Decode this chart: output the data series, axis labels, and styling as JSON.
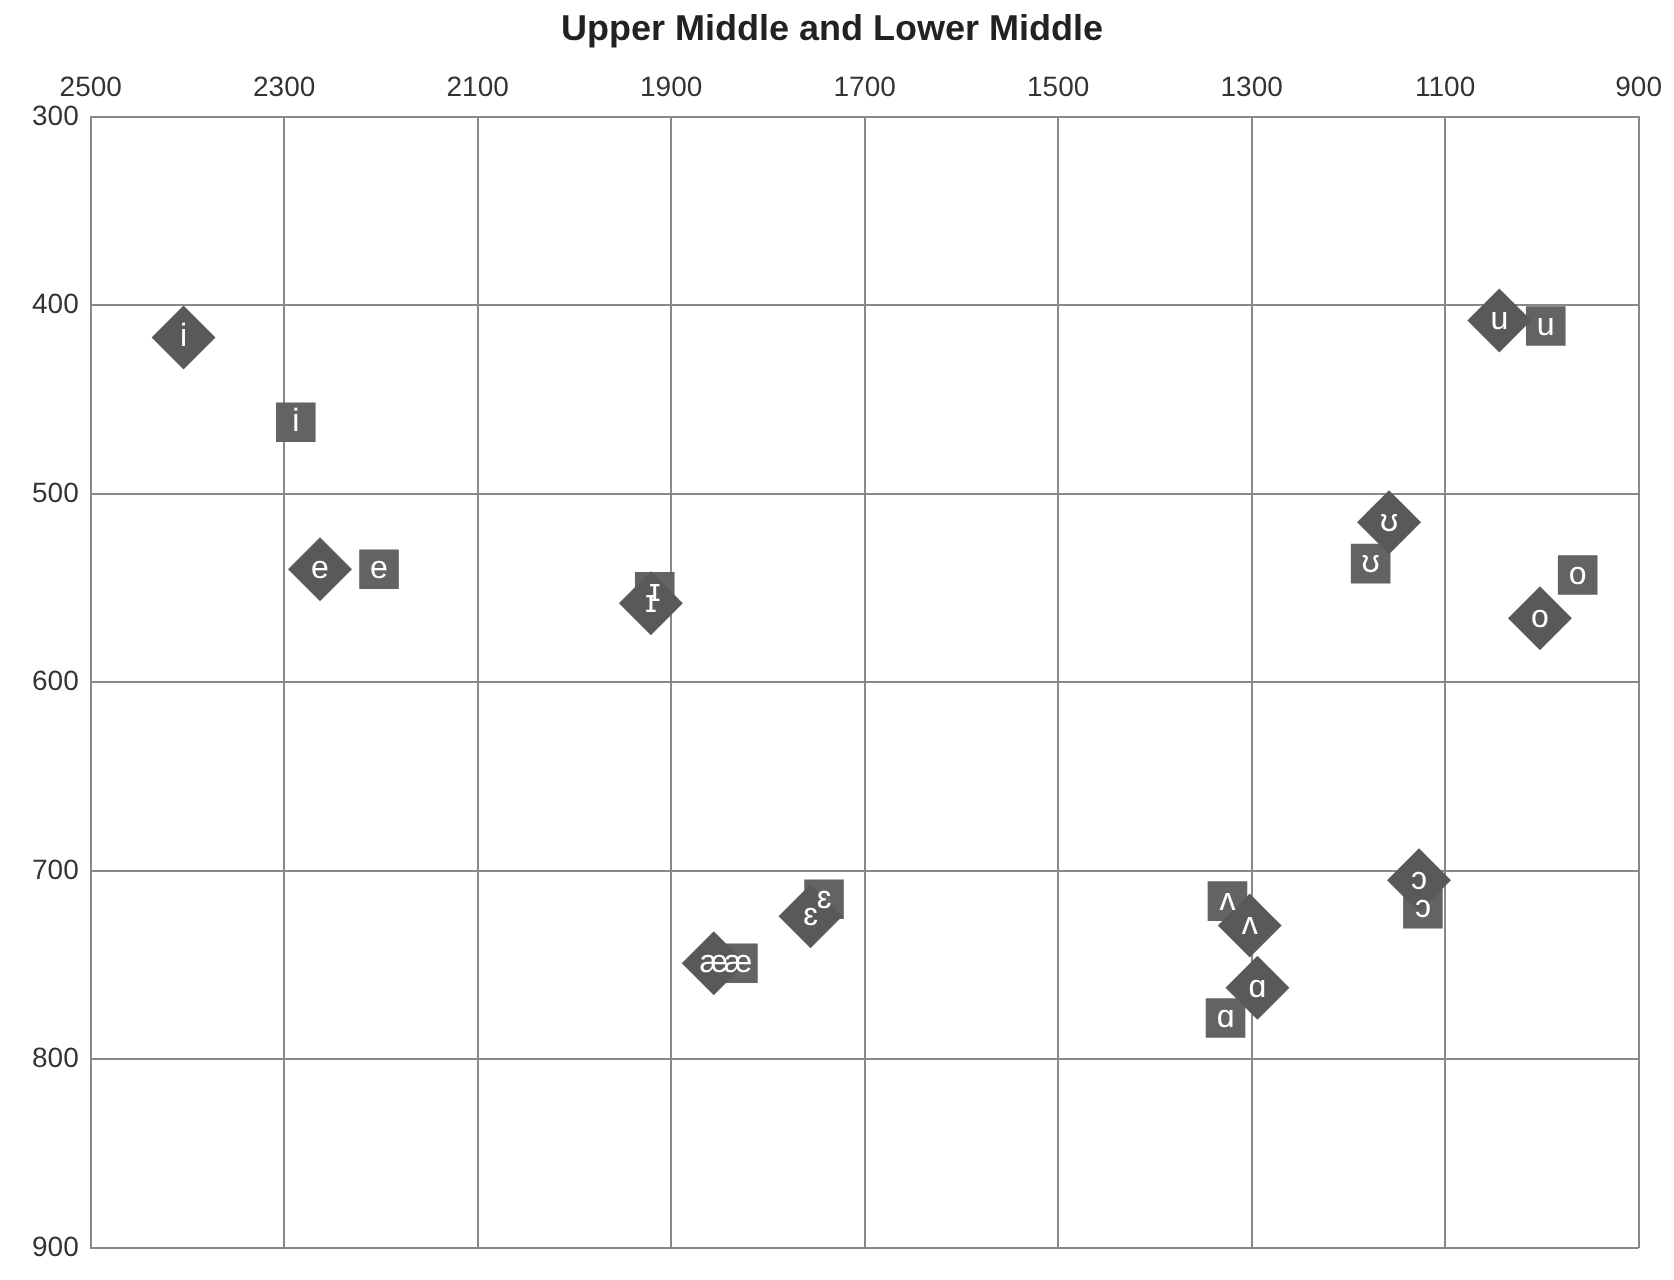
{
  "chart_data": {
    "type": "scatter",
    "title": "Upper Middle and Lower Middle",
    "xlim": [
      2500,
      900
    ],
    "xticks": [
      2500,
      2300,
      2100,
      1900,
      1700,
      1500,
      1300,
      1100,
      900
    ],
    "ylim": [
      900,
      300
    ],
    "yticks": [
      300,
      400,
      500,
      600,
      700,
      800,
      900
    ],
    "grid": true,
    "legend": false,
    "series": [
      {
        "marker": "diamond",
        "color": "#595959",
        "x": [
          2404,
          2263,
          1921,
          1856,
          1756,
          1302,
          1294,
          1127,
          1158,
          1044,
          1002
        ],
        "values": [
          417,
          540,
          558,
          749,
          724,
          729,
          762,
          705,
          515,
          408,
          566
        ],
        "value_labels": [
          "i",
          "e",
          "ɪ",
          "æ",
          "ɛ",
          "ʌ",
          "ɑ",
          "ɔ",
          "ʊ",
          "u",
          "o"
        ]
      },
      {
        "marker": "square",
        "color": "#636363",
        "x": [
          2288,
          2202,
          1917,
          1831,
          1742,
          1325,
          1327,
          1123,
          1177,
          996,
          963
        ],
        "values": [
          462,
          540,
          552,
          749,
          715,
          716,
          778,
          720,
          537,
          411,
          543
        ],
        "value_labels": [
          "i",
          "e",
          "ɪ",
          "æ",
          "ɛ",
          "ʌ",
          "ɑ",
          "ɔ",
          "ʊ",
          "u",
          "o"
        ]
      }
    ]
  }
}
